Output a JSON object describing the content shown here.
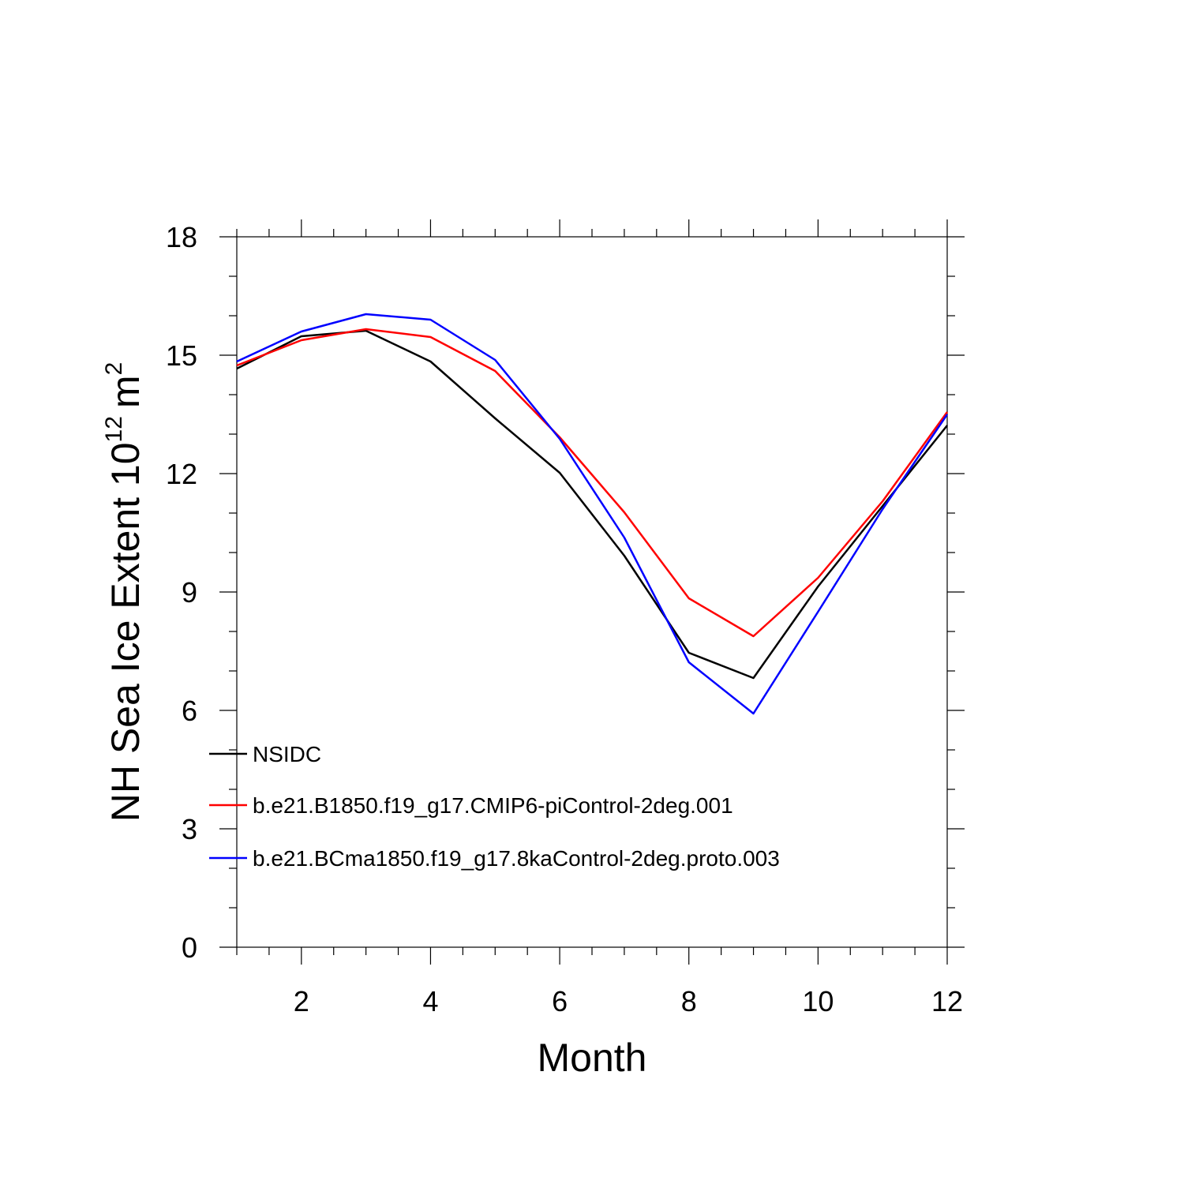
{
  "chart_data": {
    "type": "line",
    "title": "",
    "xlabel": "Month",
    "ylabel": "NH Sea Ice Extent",
    "ylabel_unit_base": "10",
    "ylabel_unit_exp": "12",
    "ylabel_unit_m": "m",
    "ylabel_unit_m_exp": "2",
    "xlim": [
      1,
      12
    ],
    "ylim": [
      0,
      18
    ],
    "x_ticks": [
      2,
      4,
      6,
      8,
      10,
      12
    ],
    "y_ticks": [
      0,
      3,
      6,
      9,
      12,
      15,
      18
    ],
    "x": [
      1,
      2,
      3,
      4,
      5,
      6,
      7,
      8,
      9,
      10,
      11,
      12
    ],
    "legend_position": "lower-left",
    "series": [
      {
        "name": "NSIDC",
        "color": "#000000",
        "values": [
          14.66,
          15.48,
          15.62,
          14.84,
          13.4,
          12.02,
          9.92,
          7.46,
          6.82,
          9.14,
          11.18,
          13.22
        ]
      },
      {
        "name": "b.e21.B1850.f19_g17.CMIP6-piControl-2deg.001",
        "color": "#ff0000",
        "values": [
          14.74,
          15.38,
          15.66,
          15.46,
          14.6,
          12.92,
          11.02,
          8.84,
          7.88,
          9.36,
          11.3,
          13.56
        ]
      },
      {
        "name": "b.e21.BCma1850.f19_g17.8kaControl-2deg.proto.003",
        "color": "#0000ff",
        "values": [
          14.84,
          15.6,
          16.04,
          15.9,
          14.88,
          12.88,
          10.38,
          7.22,
          5.92,
          8.5,
          11.1,
          13.5
        ]
      }
    ]
  }
}
